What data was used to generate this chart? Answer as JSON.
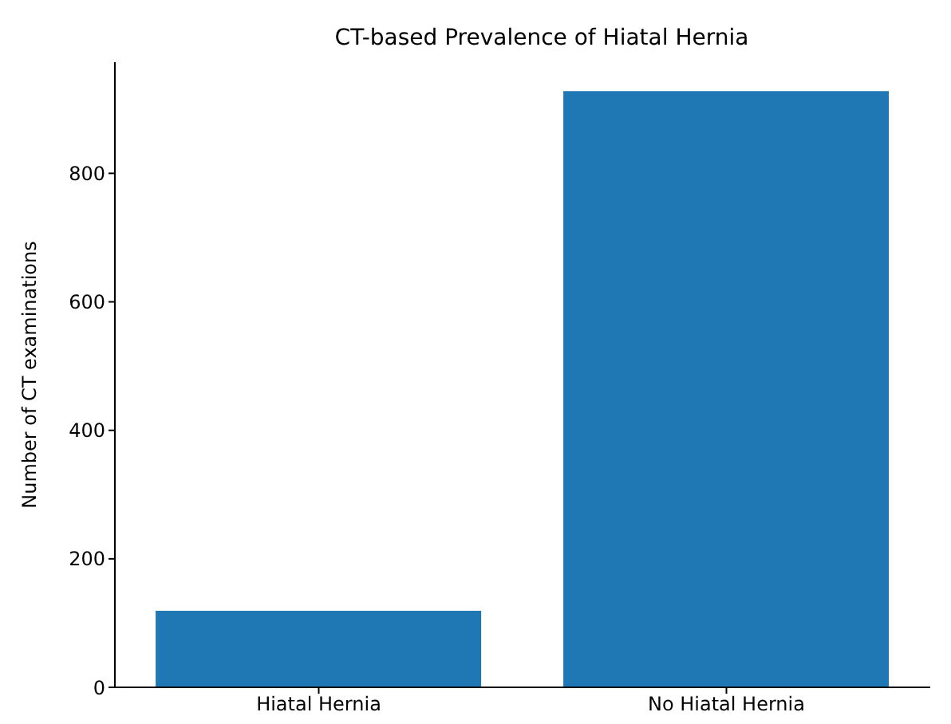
{
  "chart_data": {
    "type": "bar",
    "title": "CT-based Prevalence of Hiatal Hernia",
    "ylabel": "Number of CT examinations",
    "categories": [
      "Hiatal Hernia",
      "No Hiatal Hernia"
    ],
    "values": [
      119,
      928
    ],
    "color": "#1f77b4",
    "ylim": [
      0,
      973
    ],
    "yticks": [
      0,
      200,
      400,
      600,
      800
    ],
    "grid": false
  }
}
